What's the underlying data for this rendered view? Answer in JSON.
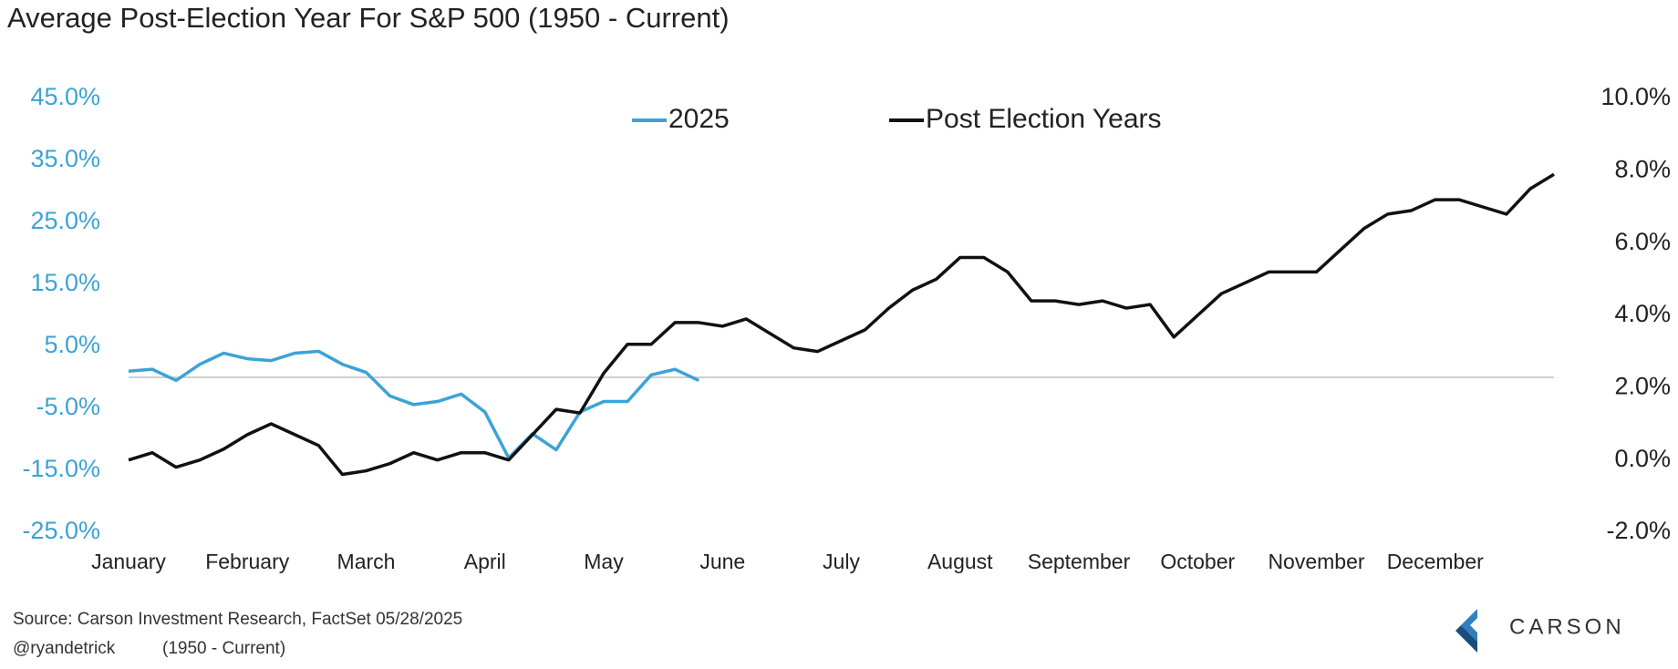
{
  "chart_data": {
    "type": "line",
    "title": "Average Post-Election Year For S&P 500 (1950 - Current)",
    "source": "Source: Carson Investment Research, FactSet 05/28/2025",
    "credit": "@ryandetrick",
    "period": "(1950 - Current)",
    "logo": "CARSON",
    "x": [
      0,
      0.2,
      0.4,
      0.6,
      0.8,
      1,
      1.2,
      1.4,
      1.6,
      1.8,
      2,
      2.2,
      2.4,
      2.6,
      2.8,
      3,
      3.2,
      3.4,
      3.6,
      3.8,
      4,
      4.2,
      4.4,
      4.6,
      4.8,
      5,
      5.2,
      5.4,
      5.6,
      5.8,
      6,
      6.2,
      6.4,
      6.6,
      6.8,
      7,
      7.2,
      7.4,
      7.6,
      7.8,
      8,
      8.2,
      8.4,
      8.6,
      8.8,
      9,
      9.2,
      9.4,
      9.6,
      9.8,
      10,
      10.2,
      10.4,
      10.6,
      10.8,
      11,
      11.2,
      11.4,
      11.6,
      11.8,
      12
    ],
    "xlim": [
      0,
      12
    ],
    "xticks": [
      {
        "value": 0,
        "label": "January"
      },
      {
        "value": 1,
        "label": "February"
      },
      {
        "value": 2,
        "label": "March"
      },
      {
        "value": 3,
        "label": "April"
      },
      {
        "value": 4,
        "label": "May"
      },
      {
        "value": 5,
        "label": "June"
      },
      {
        "value": 6,
        "label": "July"
      },
      {
        "value": 7,
        "label": "August"
      },
      {
        "value": 8,
        "label": "September"
      },
      {
        "value": 9,
        "label": "October"
      },
      {
        "value": 10,
        "label": "November"
      },
      {
        "value": 11,
        "label": "December"
      }
    ],
    "ylim": [
      -25,
      45
    ],
    "yticks": [
      {
        "value": 45,
        "label": "45.0%"
      },
      {
        "value": 35,
        "label": "35.0%"
      },
      {
        "value": 25,
        "label": "25.0%"
      },
      {
        "value": 15,
        "label": "15.0%"
      },
      {
        "value": 5,
        "label": "5.0%"
      },
      {
        "value": -5,
        "label": "-5.0%"
      },
      {
        "value": -15,
        "label": "-15.0%"
      },
      {
        "value": -25,
        "label": "-25.0%"
      }
    ],
    "y2lim": [
      -2,
      10
    ],
    "y2ticks": [
      {
        "value": 10,
        "label": "10.0%"
      },
      {
        "value": 8,
        "label": "8.0%"
      },
      {
        "value": 6,
        "label": "6.0%"
      },
      {
        "value": 4,
        "label": "4.0%"
      },
      {
        "value": 2,
        "label": "2.0%"
      },
      {
        "value": 0,
        "label": "0.0%"
      },
      {
        "value": -2,
        "label": "-2.0%"
      }
    ],
    "y_color": "#3ba3d6",
    "series": [
      {
        "name": "2025",
        "color": "#3ba3d6",
        "axis": "y",
        "values": [
          1.0,
          1.3,
          -0.5,
          2.1,
          3.9,
          3.0,
          2.7,
          3.9,
          4.2,
          2.1,
          0.8,
          -3.0,
          -4.4,
          -3.9,
          -2.7,
          -5.6,
          -13,
          -9.1,
          -11.7,
          -5.6,
          -3.9,
          -3.9,
          0.4,
          1.3,
          -0.5,
          null,
          null,
          null,
          null,
          null,
          null,
          null,
          null,
          null,
          null,
          null,
          null,
          null,
          null,
          null,
          null,
          null,
          null,
          null,
          null,
          null,
          null,
          null,
          null,
          null,
          null,
          null,
          null,
          null,
          null,
          null,
          null,
          null,
          null,
          null,
          null
        ]
      },
      {
        "name": "Post Election Years",
        "color": "#111111",
        "axis": "y2",
        "values": [
          0.0,
          0.2,
          -0.2,
          0.0,
          0.3,
          0.7,
          1.0,
          0.7,
          0.4,
          -0.4,
          -0.3,
          -0.1,
          0.2,
          0.0,
          0.2,
          0.2,
          0.0,
          0.7,
          1.4,
          1.3,
          2.4,
          3.2,
          3.2,
          3.8,
          3.8,
          3.7,
          3.9,
          3.5,
          3.1,
          3.0,
          3.3,
          3.6,
          4.2,
          4.7,
          5.0,
          5.6,
          5.6,
          5.2,
          4.4,
          4.4,
          4.3,
          4.4,
          4.2,
          4.3,
          3.4,
          4.0,
          4.6,
          4.9,
          5.2,
          5.2,
          5.2,
          5.8,
          6.4,
          6.8,
          6.9,
          7.2,
          7.2,
          7.0,
          6.8,
          7.5,
          7.9
        ]
      }
    ]
  }
}
